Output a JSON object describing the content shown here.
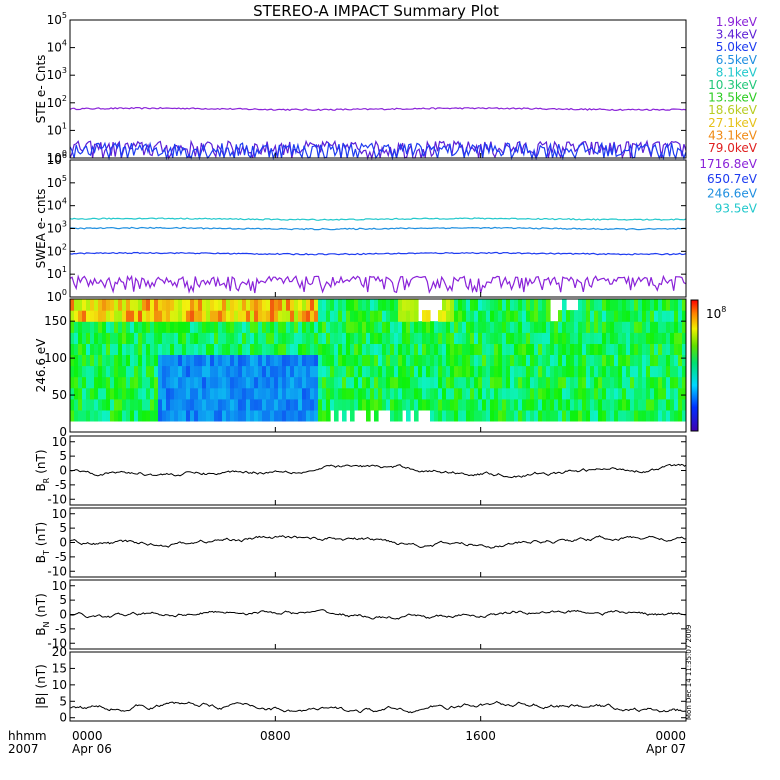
{
  "title": "STEREO-A IMPACT Summary Plot",
  "stamp": "Mon Dec 14 11:35:07 2009",
  "colorbar_label": "10",
  "colorbar_exp": "8",
  "colors": {
    "ink": "#000000",
    "background": "#ffffff"
  },
  "chart_data": {
    "type": "line",
    "x": {
      "units": "hhmm",
      "year_label": "2007",
      "range": [
        "2007-04-06 00:00",
        "2007-04-07 00:00"
      ],
      "ticks": [
        {
          "time": "0000",
          "date": "Apr 06"
        },
        {
          "time": "0800",
          "date": ""
        },
        {
          "time": "1600",
          "date": ""
        },
        {
          "time": "0000",
          "date": "Apr 07"
        }
      ]
    },
    "panels": [
      {
        "id": "ste",
        "ylabel": "STE e- Cnts",
        "scale": "log",
        "ylim": [
          1,
          100000
        ],
        "yticks": [
          {
            "base": "10",
            "exp": "0"
          },
          {
            "base": "10",
            "exp": "1"
          },
          {
            "base": "10",
            "exp": "2"
          },
          {
            "base": "10",
            "exp": "3"
          },
          {
            "base": "10",
            "exp": "4"
          },
          {
            "base": "10",
            "exp": "5"
          }
        ],
        "series": [
          {
            "name": "1.9keV",
            "color": "#8a22d8",
            "level": 60
          },
          {
            "name": "3.4keV",
            "color": "#5c1fd6",
            "level": 1.5
          },
          {
            "name": "5.0keV",
            "color": "#1d3bf0",
            "level": 1.3
          },
          {
            "name": "6.5keV",
            "color": "#1f8fe0"
          },
          {
            "name": "8.1keV",
            "color": "#22c8cc"
          },
          {
            "name": "10.3keV",
            "color": "#22c77a"
          },
          {
            "name": "13.5keV",
            "color": "#2ccc22"
          },
          {
            "name": "18.6keV",
            "color": "#b8cc22"
          },
          {
            "name": "27.1keV",
            "color": "#e6c21a"
          },
          {
            "name": "43.1keV",
            "color": "#f08a16"
          },
          {
            "name": "79.0keV",
            "color": "#e02020"
          }
        ]
      },
      {
        "id": "swea",
        "ylabel": "SWEA e- cnts",
        "scale": "log",
        "ylim": [
          1,
          1000000
        ],
        "yticks": [
          {
            "base": "10",
            "exp": "0"
          },
          {
            "base": "10",
            "exp": "1"
          },
          {
            "base": "10",
            "exp": "2"
          },
          {
            "base": "10",
            "exp": "3"
          },
          {
            "base": "10",
            "exp": "4"
          },
          {
            "base": "10",
            "exp": "5"
          },
          {
            "base": "10",
            "exp": "6"
          }
        ],
        "series": [
          {
            "name": "1716.8eV",
            "color": "#8a22d8",
            "level": 3
          },
          {
            "name": "650.7eV",
            "color": "#1d3bf0",
            "level": 80
          },
          {
            "name": "246.6eV",
            "color": "#1f8fe0",
            "level": 1000
          },
          {
            "name": "93.5eV",
            "color": "#22c8cc",
            "level": 2600
          }
        ]
      },
      {
        "id": "pad",
        "type": "heatmap",
        "ylabel": "246.6 eV",
        "ylim": [
          0,
          180
        ],
        "yticks": [
          "0",
          "50",
          "100",
          "150"
        ]
      },
      {
        "id": "br",
        "ylabel_main": "B",
        "ylabel_sub": "R",
        "ylabel_unit": "(nT)",
        "ylim": [
          -12,
          12
        ],
        "yticks": [
          "-10",
          "-5",
          "0",
          "5",
          "10"
        ],
        "mean": 0
      },
      {
        "id": "bt",
        "ylabel_main": "B",
        "ylabel_sub": "T",
        "ylabel_unit": "(nT)",
        "ylim": [
          -12,
          12
        ],
        "yticks": [
          "-10",
          "-5",
          "0",
          "5",
          "10"
        ],
        "mean": 0.5
      },
      {
        "id": "bn",
        "ylabel_main": "B",
        "ylabel_sub": "N",
        "ylabel_unit": "(nT)",
        "ylim": [
          -12,
          12
        ],
        "yticks": [
          "-10",
          "-5",
          "0",
          "5",
          "10"
        ],
        "mean": 0
      },
      {
        "id": "bmag",
        "ylabel_main": "|B|",
        "ylabel_sub": "",
        "ylabel_unit": "(nT)",
        "ylim": [
          -1,
          20
        ],
        "yticks": [
          "0",
          "5",
          "10",
          "15",
          "20"
        ],
        "mean": 3
      }
    ]
  }
}
